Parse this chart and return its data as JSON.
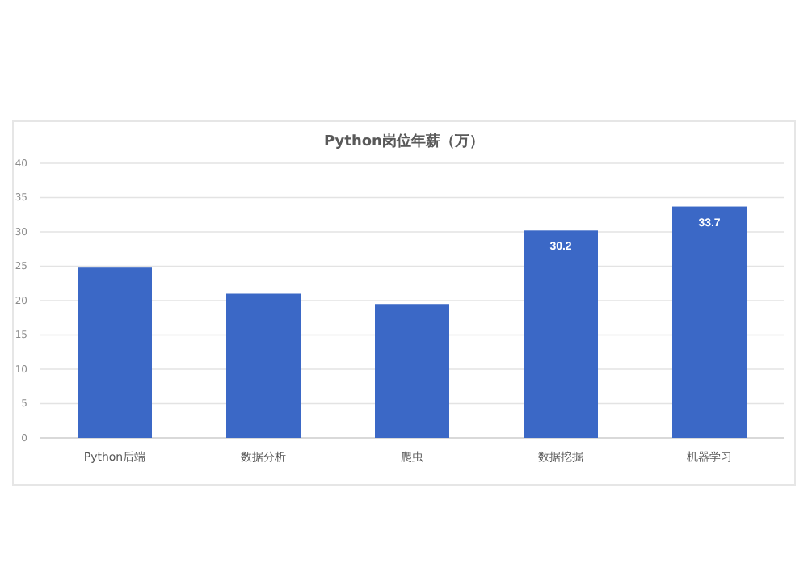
{
  "chart_data": {
    "type": "bar",
    "title": "Python岗位年薪（万）",
    "categories": [
      "Python后端",
      "数据分析",
      "爬虫",
      "数据挖掘",
      "机器学习"
    ],
    "values": [
      24.8,
      21,
      19.5,
      30.2,
      33.7
    ],
    "value_labels": [
      null,
      null,
      null,
      "30.2",
      "33.7"
    ],
    "color": "#3b68c6",
    "ylim": [
      0,
      40
    ],
    "yticks": [
      0,
      5,
      10,
      15,
      20,
      25,
      30,
      35,
      40
    ],
    "grid": "y"
  }
}
